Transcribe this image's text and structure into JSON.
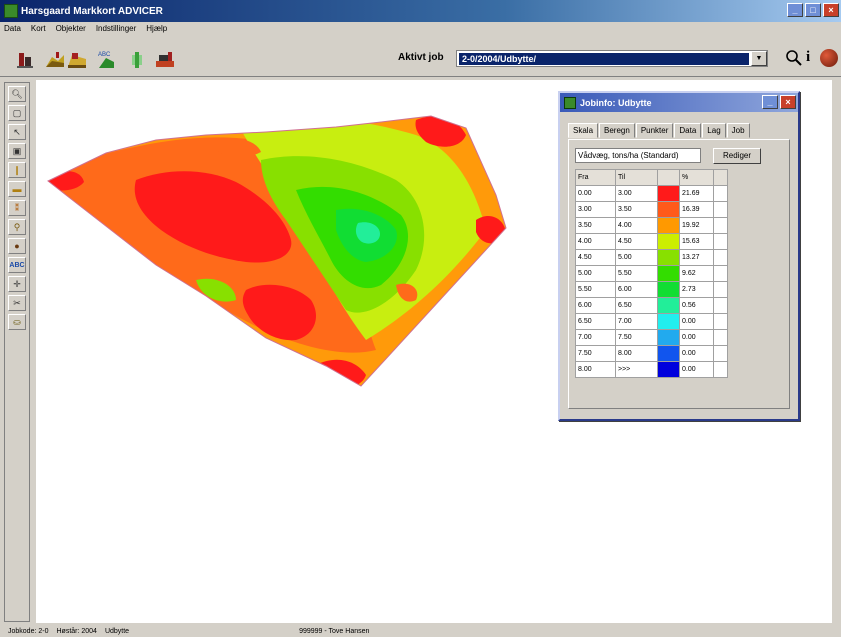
{
  "window": {
    "title": "Harsgaard Markkort ADVICER"
  },
  "menu": [
    "Data",
    "Kort",
    "Objekter",
    "Indstillinger",
    "Hjælp"
  ],
  "toolbar": {
    "active_job_label": "Aktivt job",
    "active_job_value": "2-0/2004/Udbytte/",
    "info_glyph": "i"
  },
  "dialog": {
    "title": "Jobinfo: Udbytte",
    "tabs": [
      "Skala",
      "Beregn",
      "Punkter",
      "Data",
      "Lag",
      "Job"
    ],
    "unit_value": "Vådvæg, tons/ha (Standard)",
    "edit_button": "Rediger",
    "table": {
      "headers": [
        "Fra",
        "Til",
        "",
        "%"
      ],
      "rows": [
        {
          "fra": "0.00",
          "til": "3.00",
          "color": "#ff1a1a",
          "pct": "21.69"
        },
        {
          "fra": "3.00",
          "til": "3.50",
          "color": "#ff5a1a",
          "pct": "16.39"
        },
        {
          "fra": "3.50",
          "til": "4.00",
          "color": "#ff9900",
          "pct": "19.92"
        },
        {
          "fra": "4.00",
          "til": "4.50",
          "color": "#ccee00",
          "pct": "15.63"
        },
        {
          "fra": "4.50",
          "til": "5.00",
          "color": "#88e000",
          "pct": "13.27"
        },
        {
          "fra": "5.00",
          "til": "5.50",
          "color": "#33dd00",
          "pct": "9.62"
        },
        {
          "fra": "5.50",
          "til": "6.00",
          "color": "#11dd33",
          "pct": "2.73"
        },
        {
          "fra": "6.00",
          "til": "6.50",
          "color": "#22ee99",
          "pct": "0.56"
        },
        {
          "fra": "6.50",
          "til": "7.00",
          "color": "#22eeee",
          "pct": "0.00"
        },
        {
          "fra": "7.00",
          "til": "7.50",
          "color": "#22aaee",
          "pct": "0.00"
        },
        {
          "fra": "7.50",
          "til": "8.00",
          "color": "#1155ee",
          "pct": "0.00"
        },
        {
          "fra": "8.00",
          "til": ">>>",
          "color": "#0000dd",
          "pct": "0.00"
        }
      ]
    }
  },
  "statusbar": {
    "items": [
      "Jobkode: 2-0",
      "Høstår: 2004",
      "Udbytte",
      "999999 - Tove Hansen"
    ]
  },
  "icons": {
    "toolbar": [
      "farm-icon",
      "field-icon",
      "tractor-icon",
      "abc-map-icon",
      "crop-icon",
      "soil-icon"
    ],
    "left": [
      "zoom-icon",
      "page-icon",
      "select-arrow-icon",
      "layer-icon",
      "marker-icon",
      "field-icon",
      "sample-icon",
      "person-icon",
      "ball-icon",
      "abc-icon",
      "crosshair-icon",
      "tools-icon",
      "drop-icon"
    ]
  }
}
